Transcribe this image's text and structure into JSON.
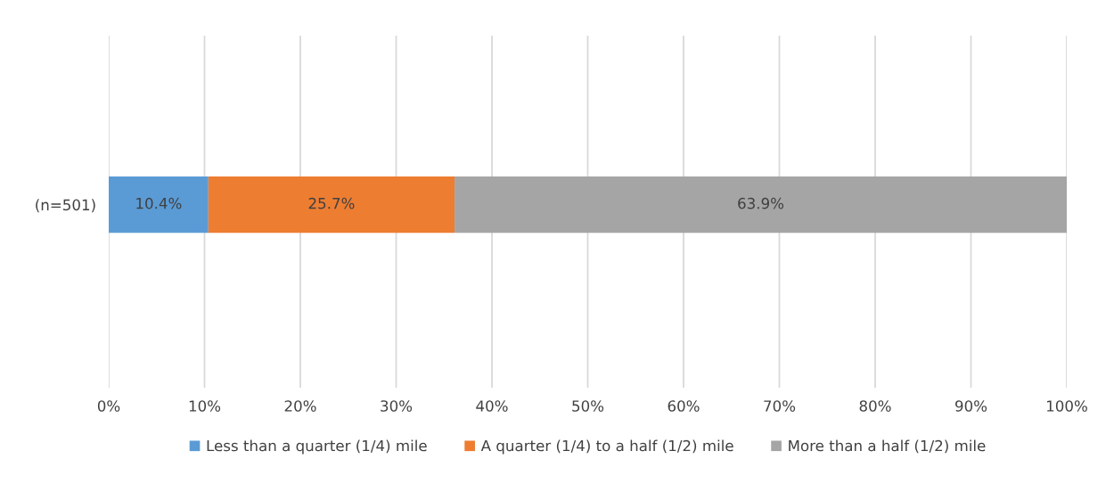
{
  "chart_data": {
    "type": "bar",
    "orientation": "horizontal",
    "stacked": true,
    "categories": [
      "(n=501)"
    ],
    "series": [
      {
        "name": "Less than a quarter (1/4) mile",
        "color": "#5b9bd5",
        "values": [
          10.4
        ],
        "value_labels": [
          "10.4%"
        ]
      },
      {
        "name": "A quarter (1/4) to a half (1/2) mile",
        "color": "#ed7d31",
        "values": [
          25.7
        ],
        "value_labels": [
          "25.7%"
        ]
      },
      {
        "name": "More than a half (1/2) mile",
        "color": "#a5a5a5",
        "values": [
          63.9
        ],
        "value_labels": [
          "63.9%"
        ]
      }
    ],
    "xlim": [
      0,
      100
    ],
    "xticks": [
      {
        "value": 0,
        "label": "0%"
      },
      {
        "value": 10,
        "label": "10%"
      },
      {
        "value": 20,
        "label": "20%"
      },
      {
        "value": 30,
        "label": "30%"
      },
      {
        "value": 40,
        "label": "40%"
      },
      {
        "value": 50,
        "label": "50%"
      },
      {
        "value": 60,
        "label": "60%"
      },
      {
        "value": 70,
        "label": "70%"
      },
      {
        "value": 80,
        "label": "80%"
      },
      {
        "value": 90,
        "label": "90%"
      },
      {
        "value": 100,
        "label": "100%"
      }
    ],
    "grid": "x",
    "legend": "bottom"
  }
}
